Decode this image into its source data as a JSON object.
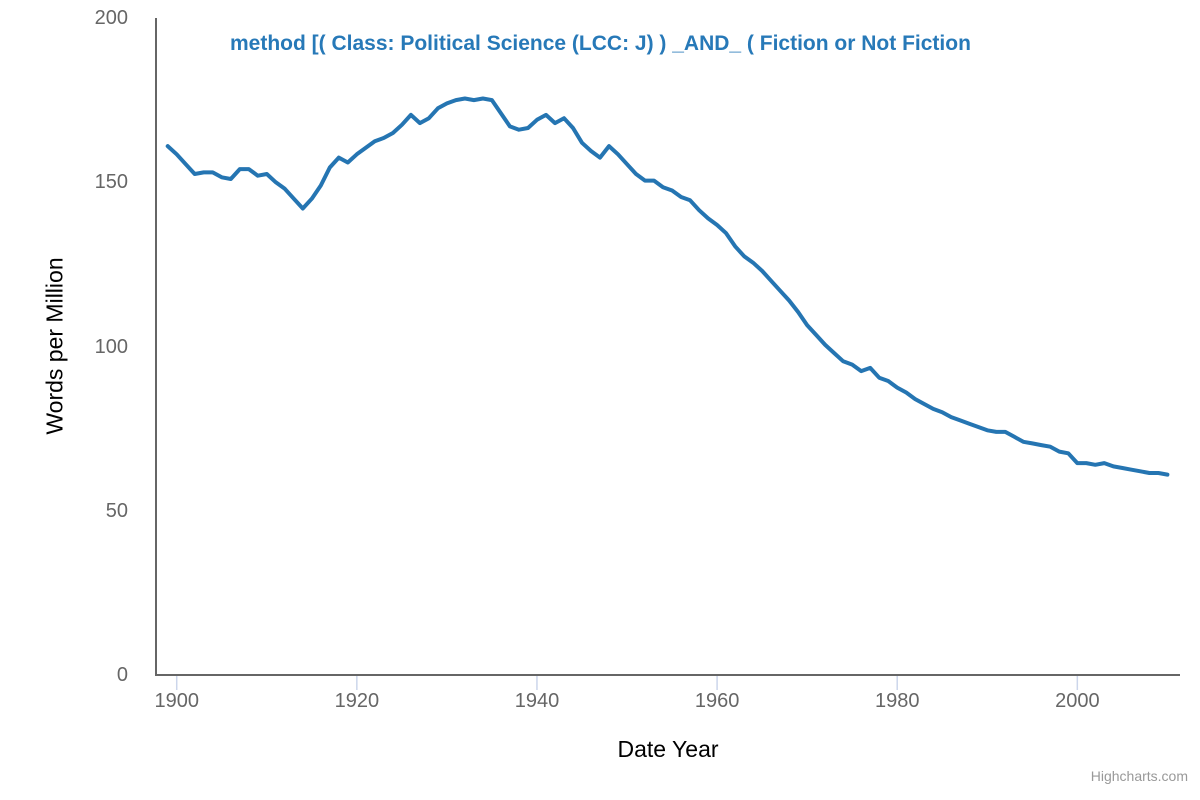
{
  "chart": {
    "title": "method [( Class: Political Science (LCC: J) ) _AND_ ( Fiction or Not Fiction",
    "y_axis_title": "Words per Million",
    "x_axis_title": "Date Year",
    "credits": "Highcharts.com"
  },
  "colors": {
    "title": "#2779b8",
    "series": "#2575b2",
    "axis_line": "#666666",
    "tick_mark": "#ccd6eb",
    "axis_labels": "#666666",
    "axis_titles": "#000000",
    "credits": "#999999",
    "background": "#ffffff"
  },
  "chart_data": {
    "type": "line",
    "title": "method [( Class: Political Science (LCC: J) ) _AND_ ( Fiction or Not Fiction",
    "xlabel": "Date Year",
    "ylabel": "Words per Million",
    "xlim": [
      1897.7,
      2011.4
    ],
    "ylim": [
      0,
      200
    ],
    "x_ticks": [
      1900,
      1920,
      1940,
      1960,
      1980,
      2000
    ],
    "y_ticks": [
      0,
      50,
      100,
      150,
      200
    ],
    "grid": false,
    "legend": false,
    "series": [
      {
        "name": "Words per Million",
        "color": "#2575b2",
        "x": [
          1899,
          1900,
          1901,
          1902,
          1903,
          1904,
          1905,
          1906,
          1907,
          1908,
          1909,
          1910,
          1911,
          1912,
          1913,
          1914,
          1915,
          1916,
          1917,
          1918,
          1919,
          1920,
          1921,
          1922,
          1923,
          1924,
          1925,
          1926,
          1927,
          1928,
          1929,
          1930,
          1931,
          1932,
          1933,
          1934,
          1935,
          1936,
          1937,
          1938,
          1939,
          1940,
          1941,
          1942,
          1943,
          1944,
          1945,
          1946,
          1947,
          1948,
          1949,
          1950,
          1951,
          1952,
          1953,
          1954,
          1955,
          1956,
          1957,
          1958,
          1959,
          1960,
          1961,
          1962,
          1963,
          1964,
          1965,
          1966,
          1967,
          1968,
          1969,
          1970,
          1971,
          1972,
          1973,
          1974,
          1975,
          1976,
          1977,
          1978,
          1979,
          1980,
          1981,
          1982,
          1983,
          1984,
          1985,
          1986,
          1987,
          1988,
          1989,
          1990,
          1991,
          1992,
          1993,
          1994,
          1995,
          1996,
          1997,
          1998,
          1999,
          2000,
          2001,
          2002,
          2003,
          2004,
          2005,
          2006,
          2007,
          2008,
          2009,
          2010
        ],
        "values": [
          161,
          158.5,
          155.5,
          152.5,
          153,
          153,
          151.5,
          151,
          154,
          154,
          152,
          152.5,
          150,
          148,
          145,
          142,
          145,
          149,
          154.5,
          157.5,
          156,
          158.5,
          160.5,
          162.5,
          163.5,
          165,
          167.5,
          170.5,
          168,
          169.5,
          172.5,
          174,
          175,
          175.5,
          175,
          175.5,
          175,
          171,
          167,
          166,
          166.5,
          169,
          170.5,
          168,
          169.5,
          166.5,
          162,
          159.5,
          157.5,
          161,
          158.5,
          155.5,
          152.5,
          150.5,
          150.5,
          148.5,
          147.5,
          145.5,
          144.5,
          141.5,
          139,
          137,
          134.5,
          130.5,
          127.5,
          125.5,
          123,
          120,
          117,
          114,
          110.5,
          106.5,
          103.5,
          100.5,
          98,
          95.5,
          94.5,
          92.5,
          93.5,
          90.5,
          89.5,
          87.5,
          86,
          84,
          82.5,
          81,
          80,
          78.5,
          77.5,
          76.5,
          75.5,
          74.5,
          74,
          74,
          72.5,
          71,
          70.5,
          70,
          69.5,
          68,
          67.5,
          64.5,
          64.5,
          64,
          64.5,
          63.5,
          63,
          62.5,
          62,
          61.5,
          61.5,
          61
        ]
      }
    ]
  }
}
